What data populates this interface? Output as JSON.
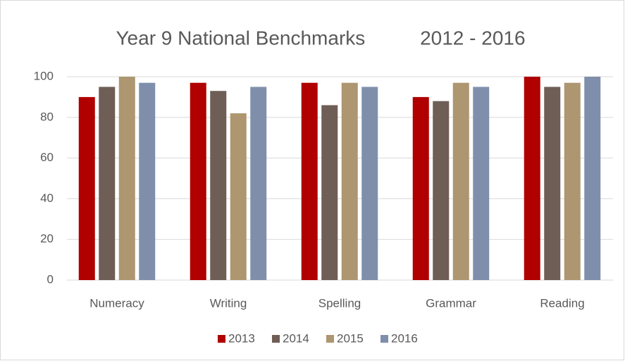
{
  "chart_data": {
    "type": "bar",
    "title": "Year 9 National Benchmarks          2012 - 2016",
    "categories": [
      "Numeracy",
      "Writing",
      "Spelling",
      "Grammar",
      "Reading"
    ],
    "series": [
      {
        "name": "2013",
        "color": "#b00000",
        "values": [
          90,
          97,
          97,
          90,
          100
        ]
      },
      {
        "name": "2014",
        "color": "#6e5e55",
        "values": [
          95,
          93,
          86,
          88,
          95
        ]
      },
      {
        "name": "2015",
        "color": "#ad9670",
        "values": [
          100,
          82,
          97,
          97,
          97
        ]
      },
      {
        "name": "2016",
        "color": "#7f8fab",
        "values": [
          97,
          95,
          95,
          95,
          100
        ]
      }
    ],
    "ylim": [
      0,
      100
    ],
    "yticks": [
      0,
      20,
      40,
      60,
      80,
      100
    ],
    "grid": true,
    "legend": "bottom"
  }
}
